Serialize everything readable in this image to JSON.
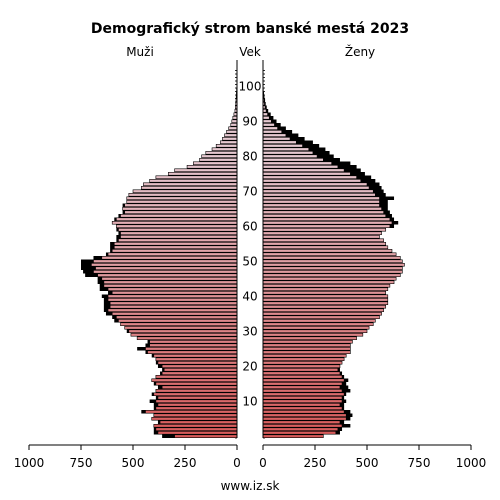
{
  "chart_data": {
    "type": "bar",
    "title": "Demografický strom banské mestá 2023",
    "left_label": "Muži",
    "center_label": "Vek",
    "right_label": "Ženy",
    "source": "www.iz.sk",
    "x_ticks_left": [
      "1000",
      "750",
      "500",
      "250",
      "0"
    ],
    "x_ticks_right": [
      "0",
      "250",
      "500",
      "750",
      "1000"
    ],
    "x_tick_values": [
      1000,
      750,
      500,
      250,
      0
    ],
    "xlim": [
      0,
      1000
    ],
    "age_ticks": [
      10,
      20,
      30,
      40,
      50,
      60,
      70,
      80,
      90,
      100
    ],
    "age_range": [
      0,
      105
    ],
    "colors": {
      "bar_young": "#d85a5a",
      "bar_old": "#e6c8d0",
      "overlay": "#000000"
    },
    "series": [
      {
        "name": "Muži",
        "values": [
          300,
          380,
          390,
          400,
          370,
          410,
          400,
          440,
          390,
          380,
          390,
          380,
          400,
          390,
          360,
          390,
          410,
          390,
          360,
          350,
          360,
          380,
          390,
          400,
          430,
          440,
          420,
          420,
          480,
          510,
          520,
          540,
          560,
          570,
          580,
          600,
          620,
          610,
          610,
          620,
          620,
          600,
          620,
          640,
          640,
          650,
          670,
          690,
          680,
          700,
          690,
          650,
          620,
          600,
          590,
          590,
          570,
          560,
          560,
          570,
          580,
          600,
          580,
          560,
          540,
          550,
          540,
          530,
          530,
          520,
          500,
          460,
          450,
          420,
          390,
          330,
          300,
          240,
          210,
          180,
          170,
          150,
          120,
          100,
          80,
          70,
          60,
          50,
          40,
          30,
          25,
          20,
          15,
          10,
          8,
          6,
          5,
          4,
          3,
          2,
          1,
          1,
          0,
          0,
          0
        ],
        "excess": [
          60,
          20,
          10,
          0,
          10,
          0,
          0,
          20,
          10,
          20,
          30,
          10,
          10,
          0,
          20,
          10,
          0,
          0,
          10,
          10,
          20,
          10,
          0,
          10,
          10,
          40,
          20,
          10,
          0,
          0,
          10,
          0,
          0,
          20,
          20,
          30,
          20,
          30,
          30,
          20,
          30,
          20,
          40,
          20,
          30,
          20,
          60,
          50,
          70,
          50,
          60,
          40,
          10,
          10,
          20,
          20,
          10,
          20,
          10,
          10,
          0,
          0,
          10,
          10,
          10,
          0,
          10,
          0,
          0,
          0,
          0,
          0,
          0,
          0,
          0,
          0,
          0,
          0,
          0,
          0,
          0,
          0,
          0,
          0,
          0,
          0,
          0,
          0,
          0,
          0,
          0,
          0,
          0,
          0,
          0,
          0,
          0,
          0,
          0,
          0,
          0,
          0,
          0,
          0,
          0
        ]
      },
      {
        "name": "Ženy",
        "values": [
          290,
          350,
          360,
          380,
          370,
          400,
          400,
          390,
          380,
          370,
          380,
          380,
          390,
          380,
          370,
          380,
          390,
          380,
          370,
          360,
          370,
          380,
          390,
          400,
          420,
          420,
          420,
          430,
          450,
          480,
          500,
          510,
          530,
          540,
          560,
          570,
          580,
          590,
          600,
          600,
          600,
          590,
          600,
          610,
          630,
          640,
          660,
          670,
          670,
          680,
          670,
          660,
          640,
          620,
          600,
          590,
          580,
          560,
          570,
          590,
          610,
          620,
          610,
          590,
          580,
          570,
          560,
          560,
          560,
          540,
          530,
          510,
          500,
          470,
          450,
          420,
          390,
          360,
          330,
          290,
          260,
          240,
          220,
          190,
          160,
          130,
          110,
          90,
          70,
          55,
          40,
          30,
          22,
          15,
          10,
          7,
          5,
          3,
          2,
          1,
          1,
          1,
          0,
          0,
          0
        ],
        "excess": [
          0,
          20,
          20,
          40,
          20,
          20,
          30,
          30,
          10,
          20,
          20,
          10,
          10,
          40,
          40,
          20,
          20,
          10,
          10,
          10,
          0,
          0,
          0,
          0,
          0,
          0,
          0,
          0,
          0,
          0,
          0,
          0,
          0,
          0,
          0,
          0,
          0,
          0,
          0,
          0,
          0,
          0,
          0,
          0,
          0,
          0,
          0,
          0,
          0,
          0,
          0,
          0,
          0,
          0,
          0,
          0,
          0,
          0,
          0,
          0,
          20,
          30,
          20,
          30,
          30,
          30,
          40,
          40,
          70,
          50,
          50,
          60,
          60,
          70,
          70,
          70,
          80,
          90,
          90,
          80,
          80,
          80,
          80,
          80,
          80,
          70,
          60,
          50,
          40,
          30,
          25,
          20,
          15,
          10,
          8,
          6,
          5,
          4,
          3,
          2,
          1,
          1,
          0,
          0,
          0
        ]
      }
    ]
  }
}
